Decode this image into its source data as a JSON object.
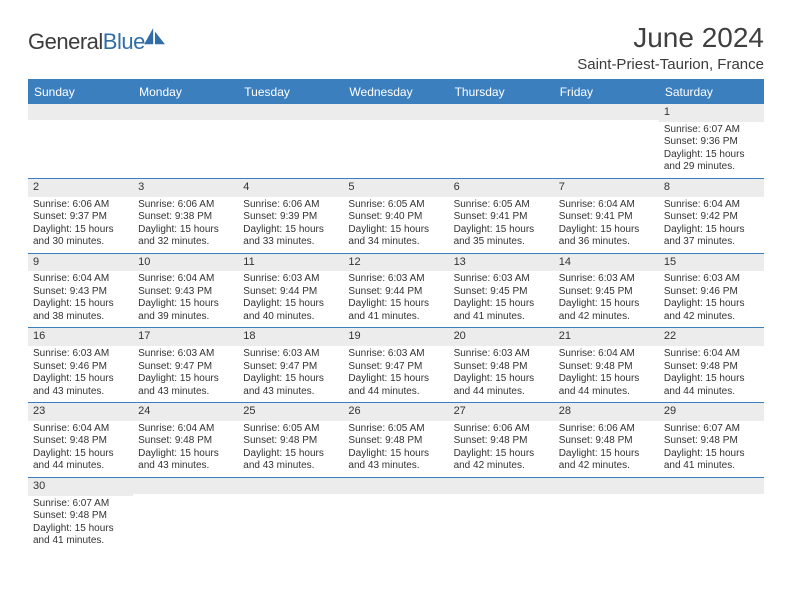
{
  "logo": {
    "word1": "General",
    "word2": "Blue"
  },
  "title": "June 2024",
  "location": "Saint-Priest-Taurion, France",
  "colors": {
    "header_bar": "#3b7fbf",
    "daynum_bg": "#ececec",
    "rule": "#3b7fbf",
    "text": "#333333",
    "title_text": "#404040",
    "logo_gray": "#3c3c3c",
    "logo_blue": "#2f6ea8"
  },
  "weekdays": [
    "Sunday",
    "Monday",
    "Tuesday",
    "Wednesday",
    "Thursday",
    "Friday",
    "Saturday"
  ],
  "weeks": [
    [
      {
        "n": "",
        "sr": "",
        "ss": "",
        "dl": ""
      },
      {
        "n": "",
        "sr": "",
        "ss": "",
        "dl": ""
      },
      {
        "n": "",
        "sr": "",
        "ss": "",
        "dl": ""
      },
      {
        "n": "",
        "sr": "",
        "ss": "",
        "dl": ""
      },
      {
        "n": "",
        "sr": "",
        "ss": "",
        "dl": ""
      },
      {
        "n": "",
        "sr": "",
        "ss": "",
        "dl": ""
      },
      {
        "n": "1",
        "sr": "Sunrise: 6:07 AM",
        "ss": "Sunset: 9:36 PM",
        "dl": "Daylight: 15 hours and 29 minutes."
      }
    ],
    [
      {
        "n": "2",
        "sr": "Sunrise: 6:06 AM",
        "ss": "Sunset: 9:37 PM",
        "dl": "Daylight: 15 hours and 30 minutes."
      },
      {
        "n": "3",
        "sr": "Sunrise: 6:06 AM",
        "ss": "Sunset: 9:38 PM",
        "dl": "Daylight: 15 hours and 32 minutes."
      },
      {
        "n": "4",
        "sr": "Sunrise: 6:06 AM",
        "ss": "Sunset: 9:39 PM",
        "dl": "Daylight: 15 hours and 33 minutes."
      },
      {
        "n": "5",
        "sr": "Sunrise: 6:05 AM",
        "ss": "Sunset: 9:40 PM",
        "dl": "Daylight: 15 hours and 34 minutes."
      },
      {
        "n": "6",
        "sr": "Sunrise: 6:05 AM",
        "ss": "Sunset: 9:41 PM",
        "dl": "Daylight: 15 hours and 35 minutes."
      },
      {
        "n": "7",
        "sr": "Sunrise: 6:04 AM",
        "ss": "Sunset: 9:41 PM",
        "dl": "Daylight: 15 hours and 36 minutes."
      },
      {
        "n": "8",
        "sr": "Sunrise: 6:04 AM",
        "ss": "Sunset: 9:42 PM",
        "dl": "Daylight: 15 hours and 37 minutes."
      }
    ],
    [
      {
        "n": "9",
        "sr": "Sunrise: 6:04 AM",
        "ss": "Sunset: 9:43 PM",
        "dl": "Daylight: 15 hours and 38 minutes."
      },
      {
        "n": "10",
        "sr": "Sunrise: 6:04 AM",
        "ss": "Sunset: 9:43 PM",
        "dl": "Daylight: 15 hours and 39 minutes."
      },
      {
        "n": "11",
        "sr": "Sunrise: 6:03 AM",
        "ss": "Sunset: 9:44 PM",
        "dl": "Daylight: 15 hours and 40 minutes."
      },
      {
        "n": "12",
        "sr": "Sunrise: 6:03 AM",
        "ss": "Sunset: 9:44 PM",
        "dl": "Daylight: 15 hours and 41 minutes."
      },
      {
        "n": "13",
        "sr": "Sunrise: 6:03 AM",
        "ss": "Sunset: 9:45 PM",
        "dl": "Daylight: 15 hours and 41 minutes."
      },
      {
        "n": "14",
        "sr": "Sunrise: 6:03 AM",
        "ss": "Sunset: 9:45 PM",
        "dl": "Daylight: 15 hours and 42 minutes."
      },
      {
        "n": "15",
        "sr": "Sunrise: 6:03 AM",
        "ss": "Sunset: 9:46 PM",
        "dl": "Daylight: 15 hours and 42 minutes."
      }
    ],
    [
      {
        "n": "16",
        "sr": "Sunrise: 6:03 AM",
        "ss": "Sunset: 9:46 PM",
        "dl": "Daylight: 15 hours and 43 minutes."
      },
      {
        "n": "17",
        "sr": "Sunrise: 6:03 AM",
        "ss": "Sunset: 9:47 PM",
        "dl": "Daylight: 15 hours and 43 minutes."
      },
      {
        "n": "18",
        "sr": "Sunrise: 6:03 AM",
        "ss": "Sunset: 9:47 PM",
        "dl": "Daylight: 15 hours and 43 minutes."
      },
      {
        "n": "19",
        "sr": "Sunrise: 6:03 AM",
        "ss": "Sunset: 9:47 PM",
        "dl": "Daylight: 15 hours and 44 minutes."
      },
      {
        "n": "20",
        "sr": "Sunrise: 6:03 AM",
        "ss": "Sunset: 9:48 PM",
        "dl": "Daylight: 15 hours and 44 minutes."
      },
      {
        "n": "21",
        "sr": "Sunrise: 6:04 AM",
        "ss": "Sunset: 9:48 PM",
        "dl": "Daylight: 15 hours and 44 minutes."
      },
      {
        "n": "22",
        "sr": "Sunrise: 6:04 AM",
        "ss": "Sunset: 9:48 PM",
        "dl": "Daylight: 15 hours and 44 minutes."
      }
    ],
    [
      {
        "n": "23",
        "sr": "Sunrise: 6:04 AM",
        "ss": "Sunset: 9:48 PM",
        "dl": "Daylight: 15 hours and 44 minutes."
      },
      {
        "n": "24",
        "sr": "Sunrise: 6:04 AM",
        "ss": "Sunset: 9:48 PM",
        "dl": "Daylight: 15 hours and 43 minutes."
      },
      {
        "n": "25",
        "sr": "Sunrise: 6:05 AM",
        "ss": "Sunset: 9:48 PM",
        "dl": "Daylight: 15 hours and 43 minutes."
      },
      {
        "n": "26",
        "sr": "Sunrise: 6:05 AM",
        "ss": "Sunset: 9:48 PM",
        "dl": "Daylight: 15 hours and 43 minutes."
      },
      {
        "n": "27",
        "sr": "Sunrise: 6:06 AM",
        "ss": "Sunset: 9:48 PM",
        "dl": "Daylight: 15 hours and 42 minutes."
      },
      {
        "n": "28",
        "sr": "Sunrise: 6:06 AM",
        "ss": "Sunset: 9:48 PM",
        "dl": "Daylight: 15 hours and 42 minutes."
      },
      {
        "n": "29",
        "sr": "Sunrise: 6:07 AM",
        "ss": "Sunset: 9:48 PM",
        "dl": "Daylight: 15 hours and 41 minutes."
      }
    ],
    [
      {
        "n": "30",
        "sr": "Sunrise: 6:07 AM",
        "ss": "Sunset: 9:48 PM",
        "dl": "Daylight: 15 hours and 41 minutes."
      },
      {
        "n": "",
        "sr": "",
        "ss": "",
        "dl": ""
      },
      {
        "n": "",
        "sr": "",
        "ss": "",
        "dl": ""
      },
      {
        "n": "",
        "sr": "",
        "ss": "",
        "dl": ""
      },
      {
        "n": "",
        "sr": "",
        "ss": "",
        "dl": ""
      },
      {
        "n": "",
        "sr": "",
        "ss": "",
        "dl": ""
      },
      {
        "n": "",
        "sr": "",
        "ss": "",
        "dl": ""
      }
    ]
  ]
}
